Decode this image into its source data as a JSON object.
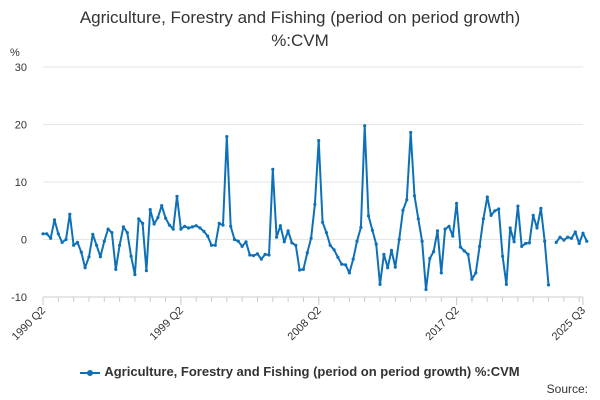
{
  "title_lines": [
    "Agriculture, Forestry and Fishing (period on period growth)",
    "%:CVM"
  ],
  "source_label": "Source:",
  "colors": {
    "series": "#0e71b8",
    "grid": "#e6e6e6",
    "axis": "#cccccc",
    "text": "#333333"
  },
  "chart_data": {
    "type": "line",
    "ylabel": "%",
    "ylim": [
      -10,
      30
    ],
    "yticks": [
      -10,
      0,
      10,
      20,
      30
    ],
    "grid": true,
    "legend_position": "bottom",
    "x_start": "1990 Q2",
    "x_end": "2025 Q3",
    "xticks": [
      "1990 Q2",
      "1999 Q2",
      "2008 Q2",
      "2017 Q2",
      "2025 Q3"
    ],
    "series": [
      {
        "name": "Agriculture, Forestry and Fishing (period on period growth) %:CVM",
        "values": [
          1.0,
          1.0,
          0.2,
          3.4,
          1.0,
          -0.5,
          0.0,
          4.4,
          -1.0,
          -0.5,
          -2.2,
          -4.9,
          -3.0,
          0.9,
          -1.0,
          -3.0,
          -0.3,
          1.8,
          1.2,
          -5.2,
          -1.0,
          2.2,
          1.2,
          -2.9,
          -6.1,
          3.6,
          2.8,
          -5.4,
          5.2,
          2.7,
          3.8,
          5.9,
          3.7,
          2.5,
          1.8,
          7.5,
          1.8,
          2.3,
          2.0,
          2.2,
          2.4,
          2.0,
          1.4,
          0.6,
          -1.0,
          -1.0,
          2.8,
          2.5,
          17.9,
          2.3,
          0.0,
          -0.3,
          -1.2,
          -0.4,
          -2.7,
          -2.8,
          -2.5,
          -3.4,
          -2.6,
          -2.7,
          12.2,
          0.4,
          2.4,
          -0.4,
          1.5,
          -0.6,
          -1.0,
          -5.3,
          -5.2,
          -2.3,
          0.2,
          6.1,
          17.2,
          3.0,
          1.2,
          -1.0,
          -1.8,
          -3.1,
          -4.3,
          -4.4,
          -5.8,
          -3.4,
          -0.3,
          2.1,
          19.8,
          4.1,
          1.6,
          -0.8,
          -7.8,
          -2.6,
          -4.9,
          -1.9,
          -4.8,
          0.0,
          5.1,
          6.9,
          18.6,
          7.6,
          3.6,
          -0.3,
          -8.7,
          -3.3,
          -2.1,
          1.5,
          -5.8,
          1.8,
          2.3,
          0.6,
          6.3,
          -1.3,
          -2.0,
          -2.6,
          -6.9,
          -5.8,
          -1.2,
          3.6,
          7.4,
          4.2,
          5.0,
          5.3,
          -2.9,
          -7.8,
          2.0,
          -0.4,
          5.8,
          -1.2,
          -0.7,
          -0.6,
          4.2,
          2.0,
          5.4,
          -0.3,
          -7.9,
          null,
          -0.5,
          0.4,
          -0.1,
          0.4,
          0.2,
          1.3,
          -0.7,
          1.1,
          -0.3
        ]
      }
    ]
  }
}
